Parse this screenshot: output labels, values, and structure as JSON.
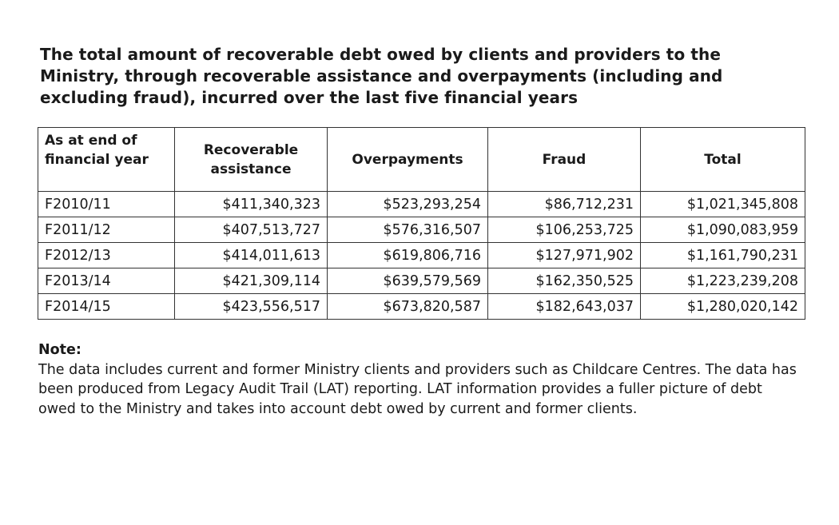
{
  "title": "The total amount of recoverable debt owed by clients and providers to the Ministry, through recoverable assistance and overpayments (including and excluding fraud), incurred over the last five financial years",
  "table": {
    "headers": [
      "As at end of financial year",
      "Recoverable assistance",
      "Overpayments",
      "Fraud",
      "Total"
    ],
    "rows": [
      [
        "F2010/11",
        "$411,340,323",
        "$523,293,254",
        "$86,712,231",
        "$1,021,345,808"
      ],
      [
        "F2011/12",
        "$407,513,727",
        "$576,316,507",
        "$106,253,725",
        "$1,090,083,959"
      ],
      [
        "F2012/13",
        "$414,011,613",
        "$619,806,716",
        "$127,971,902",
        "$1,161,790,231"
      ],
      [
        "F2013/14",
        "$421,309,114",
        "$639,579,569",
        "$162,350,525",
        "$1,223,239,208"
      ],
      [
        "F2014/15",
        "$423,556,517",
        "$673,820,587",
        "$182,643,037",
        "$1,280,020,142"
      ]
    ]
  },
  "note": {
    "heading": "Note:",
    "text": "The data includes current and former Ministry clients and providers such as Childcare Centres. The data has been produced from Legacy Audit Trail (LAT) reporting. LAT information provides a fuller picture of debt owed to the Ministry and takes into account debt owed by current and former clients."
  }
}
